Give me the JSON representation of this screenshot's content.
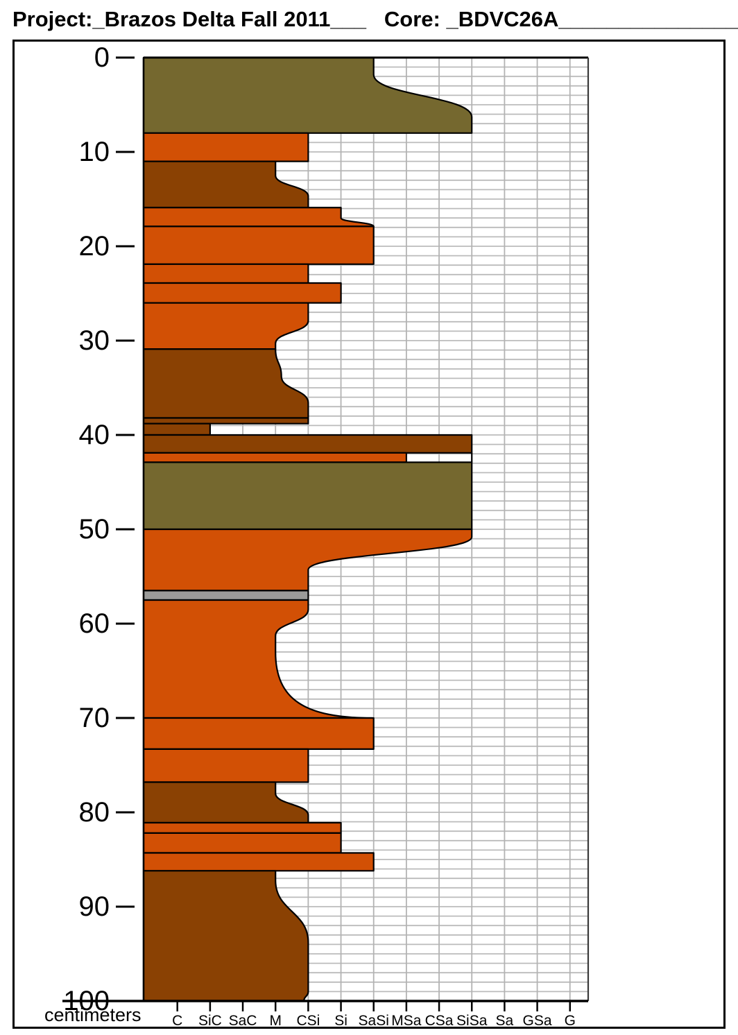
{
  "header": {
    "title": "Project:_Brazos Delta Fall 2011___   Core: _BDVC26A___________________"
  },
  "axis": {
    "unit_label": "centimeters"
  },
  "chart_data": {
    "type": "area",
    "chart_kind": "sediment-core-grain-size-log",
    "title": "Project: Brazos Delta Fall 2011 — Core: BDVC26A",
    "ylabel": "centimeters",
    "ylim": [
      0,
      100
    ],
    "depth_ticks": [
      0,
      10,
      20,
      30,
      40,
      50,
      60,
      70,
      80,
      90,
      100
    ],
    "x_categories": [
      "C",
      "SiC",
      "SaC",
      "M",
      "CSi",
      "Si",
      "SaSi",
      "MSa",
      "CSa",
      "SiSa",
      "Sa",
      "GSa",
      "G"
    ],
    "grid": true,
    "colors": {
      "olive": "#75682F",
      "orange": "#D25005",
      "brown": "#8A4103",
      "gray": "#9B9B99",
      "grid_h": "#BBBBBB",
      "grid_v": "#B3B3B3",
      "outline": "#000000"
    },
    "layers": [
      {
        "color": "olive",
        "top": 0,
        "bottom": 8,
        "edge": [
          {
            "d": 0,
            "g": 7
          },
          {
            "d": 1.8,
            "g": 7
          },
          {
            "d": 6.3,
            "g": 10
          },
          {
            "d": 8,
            "g": 10
          }
        ]
      },
      {
        "color": "orange",
        "top": 8,
        "bottom": 11,
        "edge": [
          {
            "d": 8,
            "g": 5
          },
          {
            "d": 11,
            "g": 5
          }
        ]
      },
      {
        "color": "brown",
        "top": 11,
        "bottom": 15.9,
        "edge": [
          {
            "d": 11,
            "g": 4
          },
          {
            "d": 12.5,
            "g": 4
          },
          {
            "d": 14.7,
            "g": 5
          },
          {
            "d": 15.9,
            "g": 5
          }
        ]
      },
      {
        "color": "orange",
        "top": 15.9,
        "bottom": 17.9,
        "edge": [
          {
            "d": 15.9,
            "g": 6
          },
          {
            "d": 17,
            "g": 6
          },
          {
            "d": 17.9,
            "g": 7
          }
        ]
      },
      {
        "color": "orange",
        "top": 17.9,
        "bottom": 21.9,
        "edge": [
          {
            "d": 17.9,
            "g": 7
          },
          {
            "d": 21.9,
            "g": 7
          }
        ]
      },
      {
        "color": "orange",
        "top": 21.9,
        "bottom": 23.9,
        "edge": [
          {
            "d": 21.9,
            "g": 5
          },
          {
            "d": 23.9,
            "g": 5
          }
        ]
      },
      {
        "color": "orange",
        "top": 23.9,
        "bottom": 26,
        "edge": [
          {
            "d": 23.9,
            "g": 6
          },
          {
            "d": 26,
            "g": 6
          }
        ]
      },
      {
        "color": "orange",
        "top": 26,
        "bottom": 30.9,
        "edge": [
          {
            "d": 26,
            "g": 5
          },
          {
            "d": 27.9,
            "g": 5
          },
          {
            "d": 30.3,
            "g": 4
          },
          {
            "d": 30.9,
            "g": 4
          }
        ]
      },
      {
        "color": "brown",
        "top": 30.9,
        "bottom": 38.2,
        "edge": [
          {
            "d": 30.9,
            "g": 4
          },
          {
            "d": 33.8,
            "g": 4.18
          },
          {
            "d": 36.6,
            "g": 5
          },
          {
            "d": 38.2,
            "g": 5
          }
        ]
      },
      {
        "color": "brown",
        "top": 38.2,
        "bottom": 38.8,
        "edge": [
          {
            "d": 38.2,
            "g": 5
          },
          {
            "d": 38.8,
            "g": 5
          }
        ]
      },
      {
        "color": "brown",
        "top": 38.8,
        "bottom": 40,
        "edge": [
          {
            "d": 38.8,
            "g": 2
          },
          {
            "d": 40,
            "g": 2
          }
        ]
      },
      {
        "color": "brown",
        "top": 40,
        "bottom": 41.9,
        "edge": [
          {
            "d": 40,
            "g": 10
          },
          {
            "d": 41.9,
            "g": 10
          }
        ]
      },
      {
        "color": "orange",
        "top": 41.9,
        "bottom": 42.9,
        "edge": [
          {
            "d": 41.9,
            "g": 8
          },
          {
            "d": 42.9,
            "g": 8
          }
        ]
      },
      {
        "color": "olive",
        "top": 42.9,
        "bottom": 50,
        "edge": [
          {
            "d": 42.9,
            "g": 10
          },
          {
            "d": 50,
            "g": 10
          }
        ]
      },
      {
        "color": "orange",
        "top": 50,
        "bottom": 56.5,
        "edge": [
          {
            "d": 50,
            "g": 10
          },
          {
            "d": 50.8,
            "g": 10
          },
          {
            "d": 54.3,
            "g": 5
          },
          {
            "d": 56.5,
            "g": 5
          }
        ]
      },
      {
        "color": "gray",
        "top": 56.5,
        "bottom": 57.5,
        "edge": [
          {
            "d": 56.5,
            "g": 5
          },
          {
            "d": 57.5,
            "g": 5
          }
        ]
      },
      {
        "color": "orange",
        "top": 57.5,
        "bottom": 70,
        "edge": [
          {
            "d": 57.5,
            "g": 5
          },
          {
            "d": 58.5,
            "g": 5
          },
          {
            "d": 61.3,
            "g": 4
          },
          {
            "d": 63,
            "g": 4
          },
          {
            "d": 70,
            "g": 6.95,
            "c": "j"
          }
        ]
      },
      {
        "color": "orange",
        "top": 70,
        "bottom": 73.3,
        "edge": [
          {
            "d": 70,
            "g": 7
          },
          {
            "d": 73.3,
            "g": 7
          }
        ]
      },
      {
        "color": "orange",
        "top": 73.3,
        "bottom": 76.8,
        "edge": [
          {
            "d": 73.3,
            "g": 5
          },
          {
            "d": 76.8,
            "g": 5
          }
        ]
      },
      {
        "color": "brown",
        "top": 76.8,
        "bottom": 81.1,
        "edge": [
          {
            "d": 76.8,
            "g": 4
          },
          {
            "d": 78,
            "g": 4
          },
          {
            "d": 80.3,
            "g": 5
          },
          {
            "d": 81.1,
            "g": 5
          }
        ]
      },
      {
        "color": "orange",
        "top": 81.1,
        "bottom": 82.2,
        "edge": [
          {
            "d": 81.1,
            "g": 6
          },
          {
            "d": 82.2,
            "g": 6
          }
        ]
      },
      {
        "color": "orange",
        "top": 82.2,
        "bottom": 84.3,
        "edge": [
          {
            "d": 82.2,
            "g": 6
          },
          {
            "d": 84.3,
            "g": 6
          }
        ]
      },
      {
        "color": "orange",
        "top": 84.3,
        "bottom": 86.2,
        "edge": [
          {
            "d": 84.3,
            "g": 7
          },
          {
            "d": 86.2,
            "g": 7
          }
        ]
      },
      {
        "color": "brown",
        "top": 86.2,
        "bottom": 100,
        "edge": [
          {
            "d": 86.2,
            "g": 4
          },
          {
            "d": 87.2,
            "g": 4
          },
          {
            "d": 93.8,
            "g": 5
          },
          {
            "d": 99,
            "g": 5
          },
          {
            "d": 100,
            "g": 4.87
          }
        ]
      }
    ],
    "connector_lines": [
      {
        "g": 10,
        "d1": 41.9,
        "d2": 42.9
      }
    ]
  }
}
